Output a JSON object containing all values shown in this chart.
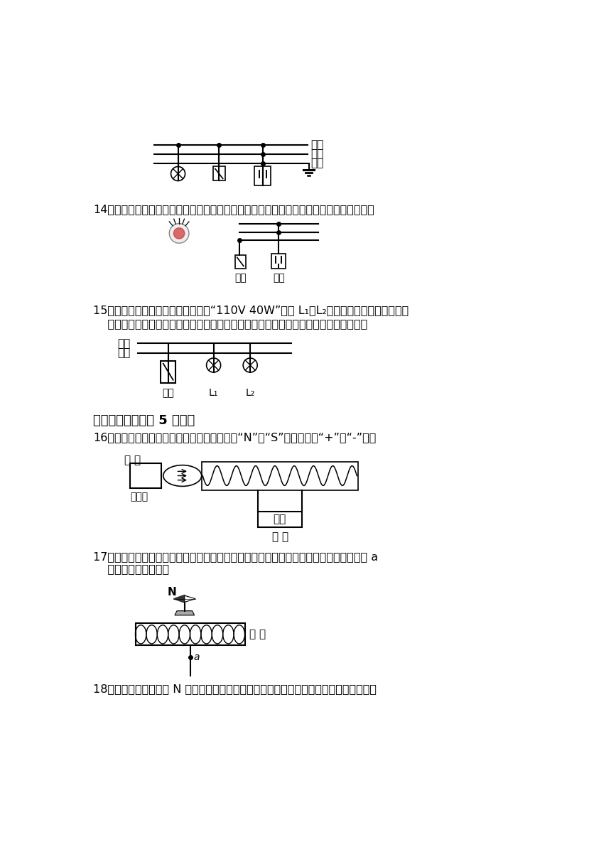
{
  "bg_color": "#ffffff",
  "fig_width": 8.6,
  "fig_height": 12.16,
  "q14_text": "14．如图所示为带开关的插座，部分电路已接好，请你用笔画线代替导线将电路补画完整。",
  "q15_line1": "15．小明的爸爸从国外带回两个标有“110V 40W”的灯 L₁、L₂，现将这两盏灯连接在我国",
  "q15_line2": "    家庭电路中（图），要求开关断开后两盏灯都息灯，开关闭合后两盏灯都能正常发光。",
  "sec2_text": "二．安培定则（共 5 小题）",
  "q16_text": "16．如图所示，请依图标出括号内的永磁体的“N”或“S”极和电源的“+”或“-”极。",
  "q17_line1": "17．小磁针静止时的指向如图所示，请在图中的括号内标出电磁鐵右端的极性，在导线上 a",
  "q17_line2": "    点标出电流的方向。",
  "q18_text": "18．请根据图中小磁针 N 极的指向，标出磁感线的方向（用简头表示）和电源的正极（用",
  "label_huoxian": "火线",
  "label_lingxian": "零线",
  "label_dixian": "地线",
  "label_kaiguan": "开关",
  "label_chazuo": "插座",
  "label_yongciti": "永磁体",
  "label_dianyuan": "电源",
  "label_N": "N",
  "label_a": "a",
  "label_L1": "L₁",
  "label_L2": "L₂",
  "label_bracket": "（ ）"
}
